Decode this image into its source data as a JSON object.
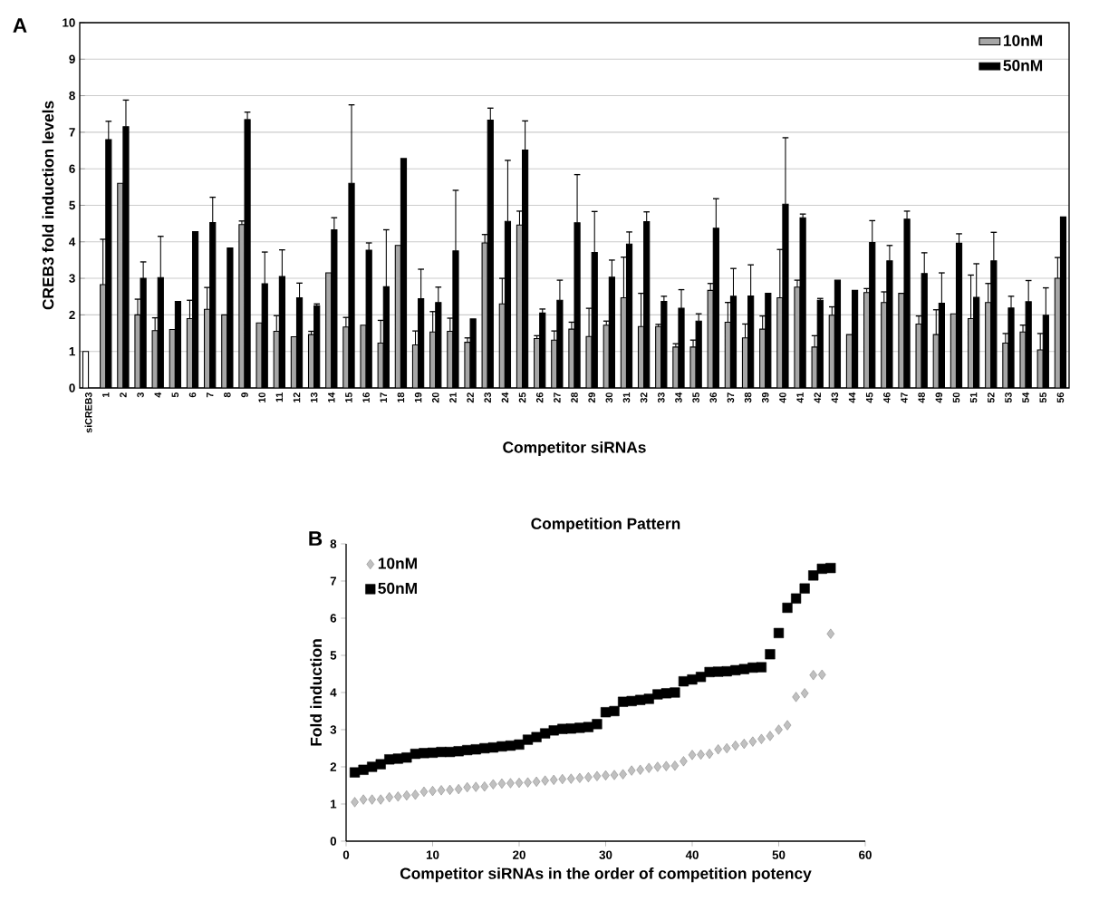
{
  "chart_data": [
    {
      "type": "bar",
      "xlabel": "Competitor siRNAs",
      "ylabel": "CREB3 fold induction levels",
      "annotations": [
        "A"
      ],
      "categories": [
        "siCREB3",
        "1",
        "2",
        "3",
        "4",
        "5",
        "6",
        "7",
        "8",
        "9",
        "10",
        "11",
        "12",
        "13",
        "14",
        "15",
        "16",
        "17",
        "18",
        "19",
        "20",
        "21",
        "22",
        "23",
        "24",
        "25",
        "26",
        "27",
        "28",
        "29",
        "30",
        "31",
        "32",
        "33",
        "34",
        "35",
        "36",
        "37",
        "38",
        "39",
        "40",
        "41",
        "42",
        "43",
        "44",
        "45",
        "46",
        "47",
        "48",
        "49",
        "50",
        "51",
        "52",
        "53",
        "54",
        "55",
        "56"
      ],
      "series": [
        {
          "name": "10nM",
          "color": "#a6a6a6",
          "values": [
            null,
            2.83,
            5.6,
            2.0,
            1.57,
            1.6,
            1.9,
            2.15,
            2.0,
            4.47,
            1.78,
            1.55,
            1.4,
            1.46,
            3.15,
            1.67,
            1.72,
            1.23,
            3.9,
            1.18,
            1.53,
            1.55,
            1.25,
            3.97,
            2.3,
            4.46,
            1.35,
            1.31,
            1.61,
            1.41,
            1.72,
            2.47,
            1.68,
            1.68,
            1.12,
            1.12,
            2.67,
            1.8,
            1.37,
            1.61,
            2.47,
            2.76,
            1.12,
            1.99,
            1.46,
            2.61,
            2.34,
            2.59,
            1.75,
            1.46,
            2.03,
            1.9,
            2.34,
            1.23,
            1.53,
            1.04,
            3.0
          ],
          "errors": [
            null,
            1.24,
            null,
            0.43,
            0.35,
            null,
            0.5,
            0.6,
            null,
            0.1,
            null,
            0.43,
            null,
            0.09,
            null,
            0.26,
            null,
            0.62,
            null,
            0.38,
            0.56,
            0.36,
            0.12,
            0.23,
            0.7,
            0.38,
            0.08,
            0.25,
            0.19,
            0.77,
            0.11,
            1.11,
            0.91,
            0.06,
            0.09,
            0.19,
            0.19,
            0.54,
            0.38,
            0.36,
            1.32,
            0.19,
            0.31,
            0.23,
            null,
            0.11,
            0.29,
            null,
            0.22,
            0.68,
            null,
            1.19,
            0.52,
            0.26,
            0.19,
            0.45,
            0.57
          ]
        },
        {
          "name": "50nM",
          "color": "#000000",
          "values": [
            null,
            6.8,
            7.15,
            3.0,
            3.02,
            2.37,
            4.28,
            4.53,
            3.83,
            7.35,
            2.85,
            3.05,
            2.47,
            2.25,
            4.33,
            5.6,
            3.77,
            2.77,
            6.28,
            2.44,
            2.34,
            3.75,
            1.89,
            7.33,
            4.56,
            6.51,
            2.05,
            2.4,
            4.52,
            3.71,
            3.03,
            3.94,
            4.55,
            2.37,
            2.18,
            1.83,
            4.37,
            2.51,
            2.52,
            2.59,
            5.03,
            4.66,
            2.4,
            2.95,
            2.67,
            3.98,
            3.48,
            4.62,
            3.13,
            2.32,
            3.96,
            2.48,
            3.48,
            2.19,
            2.36,
            1.99,
            4.68
          ],
          "errors": [
            null,
            0.5,
            0.73,
            0.45,
            1.13,
            null,
            null,
            0.69,
            null,
            0.2,
            0.87,
            0.73,
            0.4,
            0.05,
            0.33,
            2.15,
            0.2,
            1.56,
            null,
            0.81,
            0.42,
            1.66,
            null,
            0.33,
            1.67,
            0.8,
            0.11,
            0.55,
            1.32,
            1.12,
            0.47,
            0.33,
            0.27,
            0.14,
            0.51,
            0.2,
            0.81,
            0.76,
            0.85,
            null,
            1.82,
            0.1,
            0.05,
            null,
            null,
            0.6,
            0.42,
            0.22,
            0.57,
            0.83,
            0.26,
            0.92,
            0.78,
            0.32,
            0.58,
            0.75,
            null
          ]
        },
        {
          "color": "#ffffff",
          "values": [
            1,
            null,
            null,
            null,
            null,
            null,
            null,
            null,
            null,
            null,
            null,
            null,
            null,
            null,
            null,
            null,
            null,
            null,
            null,
            null,
            null,
            null,
            null,
            null,
            null,
            null,
            null,
            null,
            null,
            null,
            null,
            null,
            null,
            null,
            null,
            null,
            null,
            null,
            null,
            null,
            null,
            null,
            null,
            null,
            null,
            null,
            null,
            null,
            null,
            null,
            null,
            null,
            null,
            null,
            null,
            null,
            null
          ]
        }
      ],
      "ylim": [
        0,
        10
      ],
      "yticks": [
        0,
        1,
        2,
        3,
        4,
        5,
        6,
        7,
        8,
        9,
        10
      ],
      "grid": "y",
      "legend": "top right"
    },
    {
      "type": "scatter",
      "title": "Competition Pattern",
      "xlabel": "Competitor siRNAs in the order of competition potency",
      "ylabel": "Fold induction",
      "annotations": [
        "B"
      ],
      "x": [
        1,
        2,
        3,
        4,
        5,
        6,
        7,
        8,
        9,
        10,
        11,
        12,
        13,
        14,
        15,
        16,
        17,
        18,
        19,
        20,
        21,
        22,
        23,
        24,
        25,
        26,
        27,
        28,
        29,
        30,
        31,
        32,
        33,
        34,
        35,
        36,
        37,
        38,
        39,
        40,
        41,
        42,
        43,
        44,
        45,
        46,
        47,
        48,
        49,
        50,
        51,
        52,
        53,
        54,
        55,
        56
      ],
      "series": [
        {
          "name": "10nM",
          "color": "#c0c0c0",
          "marker": "diamond",
          "values": [
            1.05,
            1.12,
            1.12,
            1.12,
            1.18,
            1.2,
            1.23,
            1.25,
            1.33,
            1.35,
            1.37,
            1.38,
            1.4,
            1.45,
            1.46,
            1.47,
            1.53,
            1.55,
            1.56,
            1.57,
            1.58,
            1.6,
            1.63,
            1.65,
            1.67,
            1.68,
            1.7,
            1.72,
            1.75,
            1.77,
            1.78,
            1.8,
            1.9,
            1.92,
            1.97,
            2.0,
            2.02,
            2.03,
            2.15,
            2.32,
            2.33,
            2.35,
            2.47,
            2.5,
            2.57,
            2.62,
            2.68,
            2.75,
            2.83,
            3.0,
            3.12,
            3.88,
            3.98,
            4.47,
            4.48,
            5.58
          ]
        },
        {
          "name": "50nM",
          "color": "#000000",
          "marker": "square",
          "values": [
            1.85,
            1.92,
            2.0,
            2.07,
            2.2,
            2.22,
            2.25,
            2.35,
            2.37,
            2.38,
            2.4,
            2.4,
            2.42,
            2.45,
            2.47,
            2.5,
            2.52,
            2.55,
            2.57,
            2.6,
            2.73,
            2.8,
            2.9,
            2.98,
            3.02,
            3.03,
            3.05,
            3.07,
            3.15,
            3.47,
            3.5,
            3.75,
            3.77,
            3.8,
            3.83,
            3.95,
            3.98,
            4.0,
            4.3,
            4.35,
            4.42,
            4.55,
            4.56,
            4.57,
            4.6,
            4.63,
            4.67,
            4.68,
            5.03,
            5.6,
            6.28,
            6.53,
            6.8,
            7.15,
            7.33,
            7.35
          ]
        }
      ],
      "xlim": [
        0,
        60
      ],
      "xticks": [
        0,
        10,
        20,
        30,
        40,
        50,
        60
      ],
      "ylim": [
        0,
        8
      ],
      "yticks": [
        0,
        1,
        2,
        3,
        4,
        5,
        6,
        7,
        8
      ],
      "legend": "top left"
    }
  ]
}
